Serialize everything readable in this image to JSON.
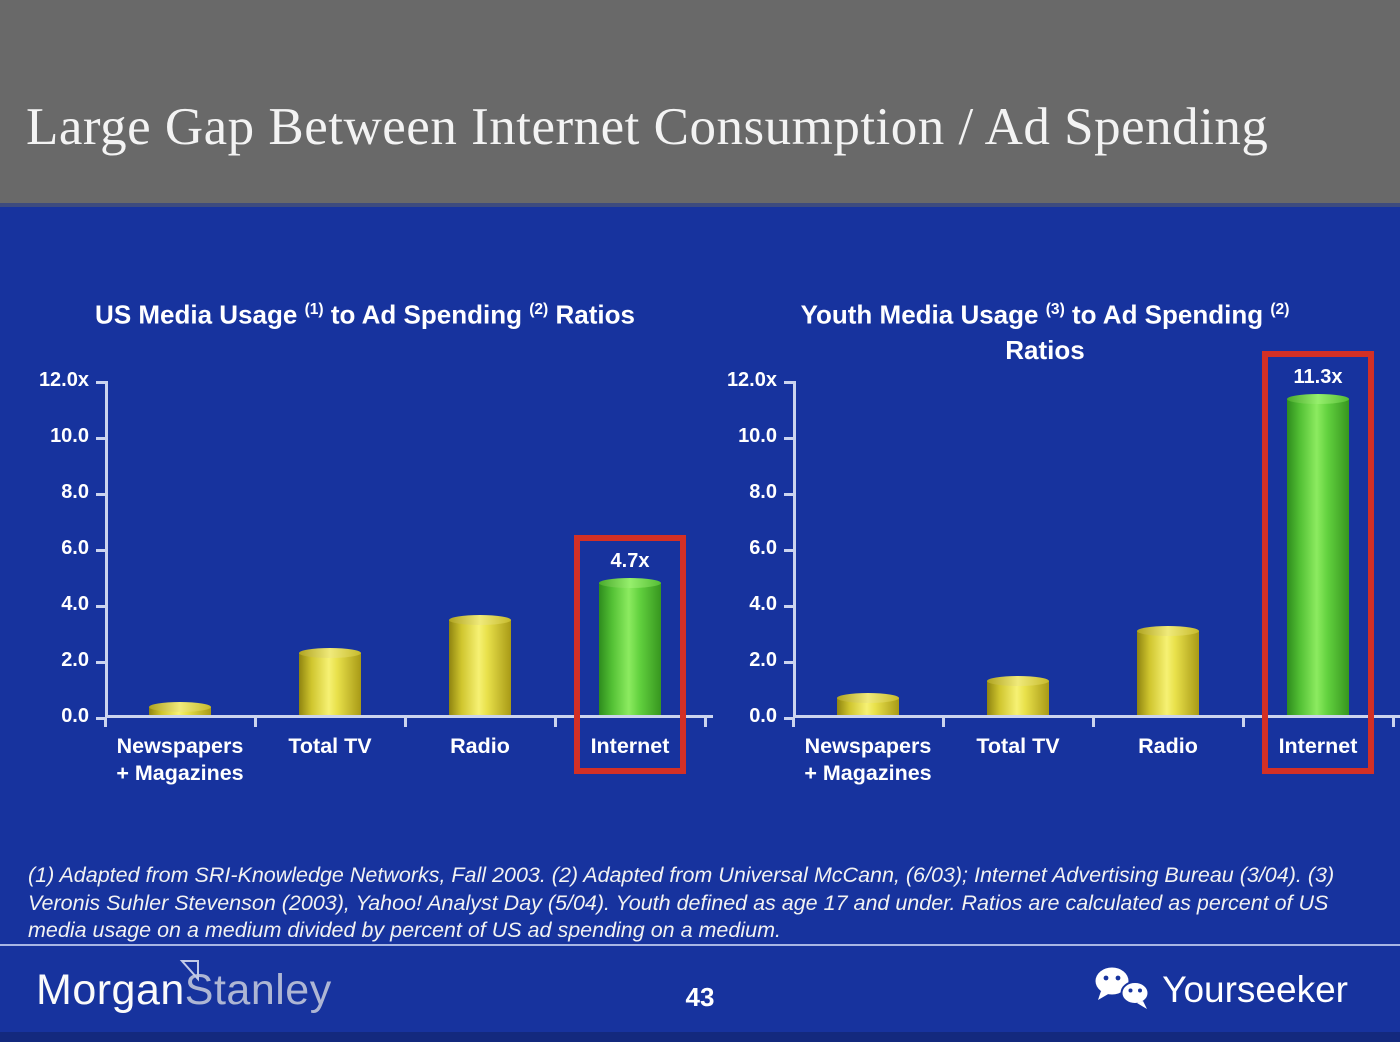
{
  "header": {
    "title": "Large Gap Between Internet Consumption / Ad Spending"
  },
  "chart_data": [
    {
      "type": "bar",
      "title": "US Media Usage (1) to Ad Spending (2) Ratios",
      "title_parts": [
        {
          "text": "US Media Usage "
        },
        {
          "sup": "(1)"
        },
        {
          "text": " to Ad Spending "
        },
        {
          "sup": "(2)"
        },
        {
          "text": " Ratios"
        }
      ],
      "categories": [
        "Newspapers\n+ Magazines",
        "Total TV",
        "Radio",
        "Internet"
      ],
      "values": [
        0.3,
        2.2,
        3.4,
        4.7
      ],
      "bar_colors": [
        "yellow",
        "yellow",
        "yellow",
        "green"
      ],
      "ylim": [
        0,
        12
      ],
      "ytick_labels": [
        "12.0x",
        "10.0",
        "8.0",
        "6.0",
        "4.0",
        "2.0",
        "0.0"
      ],
      "grid": false,
      "legend": false,
      "highlight": {
        "category_index": 3,
        "label": "4.7x"
      }
    },
    {
      "type": "bar",
      "title": "Youth Media Usage (3) to Ad Spending (2) Ratios",
      "title_parts": [
        {
          "text": "Youth Media Usage "
        },
        {
          "sup": "(3)"
        },
        {
          "text": " to Ad Spending "
        },
        {
          "sup": "(2)"
        },
        {
          "br": true
        },
        {
          "text": "Ratios"
        }
      ],
      "categories": [
        "Newspapers\n+ Magazines",
        "Total TV",
        "Radio",
        "Internet"
      ],
      "values": [
        0.6,
        1.2,
        3.0,
        11.3
      ],
      "bar_colors": [
        "yellow",
        "yellow",
        "yellow",
        "green"
      ],
      "ylim": [
        0,
        12
      ],
      "ytick_labels": [
        "12.0x",
        "10.0",
        "8.0",
        "6.0",
        "4.0",
        "2.0",
        "0.0"
      ],
      "grid": false,
      "legend": false,
      "highlight": {
        "category_index": 3,
        "label": "11.3x"
      }
    }
  ],
  "footnote": "(1) Adapted from SRI-Knowledge Networks, Fall 2003.  (2) Adapted from Universal McCann, (6/03); Internet Advertising Bureau (3/04). (3) Veronis Suhler Stevenson (2003), Yahoo! Analyst Day (5/04).  Youth defined as age 17 and under.  Ratios are calculated as percent of US media usage on a medium divided by percent of US ad spending on a medium.",
  "footer": {
    "brand_primary": "Morgan",
    "brand_secondary": "Stanley",
    "page_number": "43",
    "partner_label": "Yourseeker"
  },
  "icons": {
    "wechat": "wechat-icon",
    "morgan_stanley_flag": "flag-triangle-icon"
  },
  "colors": {
    "background": "#17339E",
    "header_gray": "#696969",
    "bar_yellow": "#E8E04A",
    "bar_green": "#63D23F",
    "highlight_red": "#D33025",
    "axis": "#CBD4EF"
  }
}
